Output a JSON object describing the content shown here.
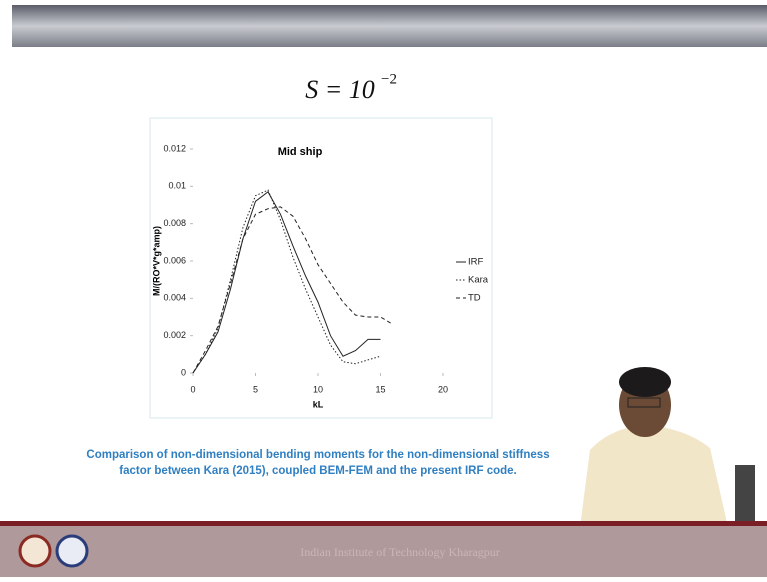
{
  "slide_title": {
    "base": "S = 10",
    "exponent": "−2"
  },
  "caption": [
    "Comparison of non-dimensional bending moments for the non-dimensional stiffness",
    "factor  between Kara (2015), coupled BEM-FEM and the present IRF code."
  ],
  "footer": "Indian Institute of Technology Kharagpur",
  "chart_data": {
    "type": "line",
    "title": "Mid ship",
    "x_label": "kL",
    "y_label": "M/(RO*V*g*amp)",
    "x": [
      0,
      1,
      2,
      3,
      4,
      5,
      6,
      7,
      8,
      9,
      10,
      11,
      12,
      13,
      14,
      15,
      16
    ],
    "series": [
      {
        "name": "IRF",
        "color": "#222222",
        "style": "solid",
        "values": [
          0,
          0.001,
          0.0022,
          0.0045,
          0.0072,
          0.0092,
          0.0097,
          0.0085,
          0.0068,
          0.0052,
          0.0038,
          0.002,
          0.0009,
          0.0012,
          0.0018,
          0.0018,
          null
        ]
      },
      {
        "name": "Kara",
        "color": "#222222",
        "style": "dotted",
        "values": [
          0,
          0.001,
          0.0024,
          0.005,
          0.0078,
          0.0095,
          0.0098,
          0.0082,
          0.0062,
          0.0045,
          0.003,
          0.0015,
          0.0006,
          0.0005,
          0.0007,
          0.0009,
          null
        ]
      },
      {
        "name": "TD",
        "color": "#222222",
        "style": "dashed",
        "values": [
          0,
          0.0012,
          0.0025,
          0.0048,
          0.0072,
          0.0085,
          0.0088,
          0.0089,
          0.0084,
          0.0072,
          0.0058,
          0.0048,
          0.0038,
          0.0031,
          0.003,
          0.003,
          0.0026
        ]
      }
    ],
    "xlim": [
      0,
      20
    ],
    "xticks": [
      0,
      5,
      10,
      15,
      20
    ],
    "ylim": [
      0,
      0.012
    ],
    "yticks": [
      0,
      0.002,
      0.004,
      0.006,
      0.008,
      0.01,
      0.012
    ],
    "legend": "right",
    "grid": false
  }
}
